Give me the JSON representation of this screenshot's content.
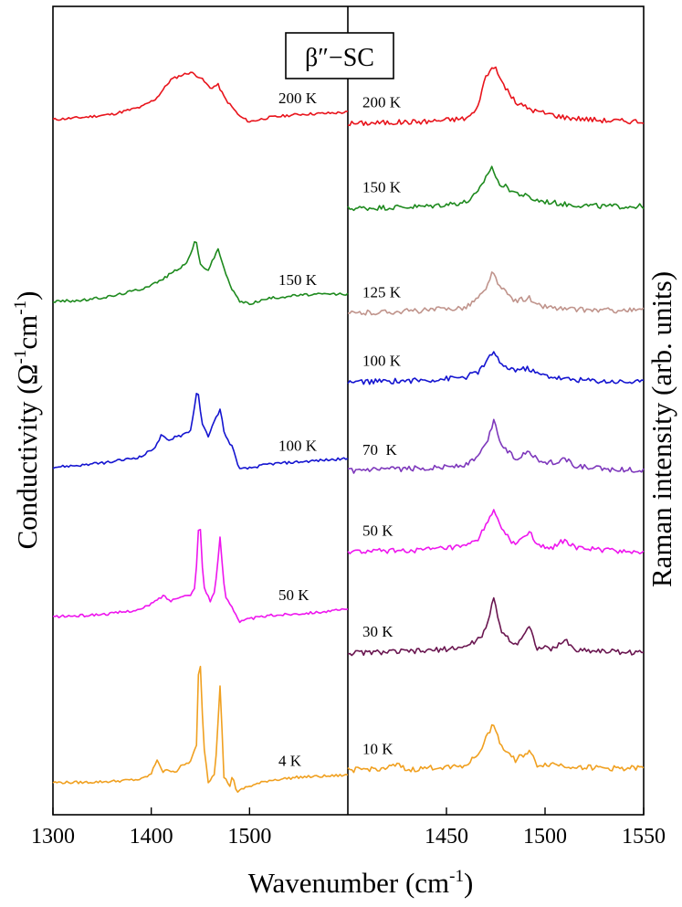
{
  "chart_data": {
    "type": "line",
    "title": "β″−SC",
    "xlabel": "Wavenumber (cm",
    "xlabel_sup": "-1",
    "xlabel_close": ")",
    "left_panel": {
      "ylabel": "Conductivity (Ω",
      "ylabel_sup1": "-1",
      "ylabel_mid": "cm",
      "ylabel_sup2": "-1",
      "ylabel_close": ")",
      "xlim": [
        1300,
        1600
      ],
      "xticks": [
        1300,
        1400,
        1500
      ],
      "series": [
        {
          "name": "200 K",
          "color": "#e8141c",
          "offset": 0.86,
          "points": [
            [
              1300,
              0
            ],
            [
              1330,
              0.02
            ],
            [
              1360,
              0.05
            ],
            [
              1390,
              0.12
            ],
            [
              1405,
              0.2
            ],
            [
              1420,
              0.38
            ],
            [
              1430,
              0.42
            ],
            [
              1440,
              0.45
            ],
            [
              1450,
              0.4
            ],
            [
              1460,
              0.3
            ],
            [
              1468,
              0.33
            ],
            [
              1475,
              0.2
            ],
            [
              1490,
              0.03
            ],
            [
              1500,
              -0.02
            ],
            [
              1520,
              0.02
            ],
            [
              1550,
              0.05
            ],
            [
              1580,
              0.06
            ],
            [
              1600,
              0.07
            ]
          ]
        },
        {
          "name": "150 K",
          "color": "#1e8a1e",
          "offset": 0.635,
          "points": [
            [
              1300,
              0
            ],
            [
              1330,
              0.01
            ],
            [
              1360,
              0.05
            ],
            [
              1390,
              0.12
            ],
            [
              1410,
              0.2
            ],
            [
              1425,
              0.3
            ],
            [
              1435,
              0.35
            ],
            [
              1440,
              0.45
            ],
            [
              1445,
              0.6
            ],
            [
              1450,
              0.35
            ],
            [
              1458,
              0.3
            ],
            [
              1468,
              0.5
            ],
            [
              1473,
              0.35
            ],
            [
              1480,
              0.15
            ],
            [
              1490,
              0.0
            ],
            [
              1500,
              -0.02
            ],
            [
              1520,
              0.03
            ],
            [
              1550,
              0.06
            ],
            [
              1580,
              0.07
            ],
            [
              1600,
              0.07
            ]
          ]
        },
        {
          "name": "100 K",
          "color": "#1414d0",
          "offset": 0.43,
          "points": [
            [
              1300,
              0
            ],
            [
              1330,
              0.02
            ],
            [
              1360,
              0.05
            ],
            [
              1390,
              0.1
            ],
            [
              1405,
              0.2
            ],
            [
              1410,
              0.3
            ],
            [
              1418,
              0.25
            ],
            [
              1425,
              0.3
            ],
            [
              1430,
              0.3
            ],
            [
              1440,
              0.35
            ],
            [
              1447,
              0.75
            ],
            [
              1452,
              0.4
            ],
            [
              1458,
              0.3
            ],
            [
              1465,
              0.45
            ],
            [
              1470,
              0.55
            ],
            [
              1475,
              0.3
            ],
            [
              1482,
              0.2
            ],
            [
              1490,
              -0.02
            ],
            [
              1500,
              -0.01
            ],
            [
              1520,
              0.03
            ],
            [
              1550,
              0.05
            ],
            [
              1580,
              0.07
            ],
            [
              1600,
              0.08
            ]
          ]
        },
        {
          "name": "50 K",
          "color": "#ee16ee",
          "offset": 0.245,
          "points": [
            [
              1300,
              0
            ],
            [
              1330,
              0.01
            ],
            [
              1360,
              0.03
            ],
            [
              1390,
              0.07
            ],
            [
              1405,
              0.15
            ],
            [
              1412,
              0.2
            ],
            [
              1420,
              0.15
            ],
            [
              1430,
              0.2
            ],
            [
              1440,
              0.2
            ],
            [
              1445,
              0.3
            ],
            [
              1449,
              1.0
            ],
            [
              1453,
              0.3
            ],
            [
              1460,
              0.15
            ],
            [
              1465,
              0.25
            ],
            [
              1470,
              0.75
            ],
            [
              1475,
              0.2
            ],
            [
              1482,
              0.1
            ],
            [
              1490,
              -0.05
            ],
            [
              1500,
              -0.02
            ],
            [
              1520,
              0.01
            ],
            [
              1550,
              0.03
            ],
            [
              1580,
              0.05
            ],
            [
              1600,
              0.07
            ]
          ]
        },
        {
          "name": "4 K",
          "color": "#f0a020",
          "offset": 0.04,
          "points": [
            [
              1300,
              0
            ],
            [
              1330,
              0.0
            ],
            [
              1360,
              0.01
            ],
            [
              1390,
              0.03
            ],
            [
              1400,
              0.08
            ],
            [
              1406,
              0.22
            ],
            [
              1412,
              0.1
            ],
            [
              1418,
              0.12
            ],
            [
              1425,
              0.1
            ],
            [
              1430,
              0.15
            ],
            [
              1440,
              0.2
            ],
            [
              1446,
              0.35
            ],
            [
              1449,
              1.35
            ],
            [
              1453,
              0.4
            ],
            [
              1458,
              0.0
            ],
            [
              1465,
              0.1
            ],
            [
              1470,
              0.93
            ],
            [
              1474,
              0.05
            ],
            [
              1480,
              -0.03
            ],
            [
              1483,
              0.07
            ],
            [
              1487,
              -0.1
            ],
            [
              1495,
              -0.05
            ],
            [
              1520,
              0.02
            ],
            [
              1550,
              0.05
            ],
            [
              1580,
              0.06
            ],
            [
              1600,
              0.07
            ]
          ]
        }
      ]
    },
    "right_panel": {
      "ylabel": "Raman intensity (arb. units)",
      "xlim": [
        1400,
        1550
      ],
      "xticks": [
        1450,
        1500,
        1550
      ],
      "series": [
        {
          "name": "200 K",
          "color": "#e8141c",
          "offset": 0.855,
          "points": [
            [
              1400,
              0
            ],
            [
              1440,
              0.02
            ],
            [
              1460,
              0.05
            ],
            [
              1465,
              0.12
            ],
            [
              1470,
              0.45
            ],
            [
              1474,
              0.55
            ],
            [
              1478,
              0.4
            ],
            [
              1485,
              0.2
            ],
            [
              1495,
              0.12
            ],
            [
              1510,
              0.06
            ],
            [
              1530,
              0.03
            ],
            [
              1550,
              0.02
            ]
          ]
        },
        {
          "name": "150 K",
          "color": "#1e8a1e",
          "offset": 0.75,
          "points": [
            [
              1400,
              0
            ],
            [
              1440,
              0.02
            ],
            [
              1460,
              0.06
            ],
            [
              1466,
              0.15
            ],
            [
              1470,
              0.3
            ],
            [
              1473,
              0.4
            ],
            [
              1476,
              0.25
            ],
            [
              1485,
              0.15
            ],
            [
              1490,
              0.12
            ],
            [
              1495,
              0.08
            ],
            [
              1510,
              0.04
            ],
            [
              1530,
              0.02
            ],
            [
              1550,
              0.02
            ]
          ]
        },
        {
          "name": "125 K",
          "color": "#c0948c",
          "offset": 0.62,
          "points": [
            [
              1400,
              0
            ],
            [
              1440,
              0.03
            ],
            [
              1460,
              0.06
            ],
            [
              1466,
              0.15
            ],
            [
              1470,
              0.22
            ],
            [
              1473,
              0.4
            ],
            [
              1477,
              0.25
            ],
            [
              1485,
              0.12
            ],
            [
              1492,
              0.15
            ],
            [
              1495,
              0.08
            ],
            [
              1510,
              0.04
            ],
            [
              1530,
              0.03
            ],
            [
              1550,
              0.03
            ]
          ]
        },
        {
          "name": "100 K",
          "color": "#1414d0",
          "offset": 0.535,
          "points": [
            [
              1400,
              0
            ],
            [
              1440,
              0.02
            ],
            [
              1460,
              0.05
            ],
            [
              1466,
              0.1
            ],
            [
              1470,
              0.18
            ],
            [
              1474,
              0.3
            ],
            [
              1478,
              0.15
            ],
            [
              1485,
              0.12
            ],
            [
              1492,
              0.13
            ],
            [
              1496,
              0.08
            ],
            [
              1510,
              0.03
            ],
            [
              1530,
              0.01
            ],
            [
              1550,
              0.0
            ]
          ]
        },
        {
          "name": "70  K",
          "color": "#7e38bc",
          "offset": 0.425,
          "points": [
            [
              1400,
              0
            ],
            [
              1440,
              0.03
            ],
            [
              1460,
              0.06
            ],
            [
              1466,
              0.14
            ],
            [
              1470,
              0.25
            ],
            [
              1474,
              0.48
            ],
            [
              1478,
              0.25
            ],
            [
              1485,
              0.12
            ],
            [
              1492,
              0.2
            ],
            [
              1496,
              0.1
            ],
            [
              1505,
              0.08
            ],
            [
              1510,
              0.12
            ],
            [
              1515,
              0.05
            ],
            [
              1530,
              0.02
            ],
            [
              1550,
              0.01
            ]
          ]
        },
        {
          "name": "50 K",
          "color": "#ee16ee",
          "offset": 0.325,
          "points": [
            [
              1400,
              0
            ],
            [
              1440,
              0.02
            ],
            [
              1460,
              0.05
            ],
            [
              1466,
              0.12
            ],
            [
              1470,
              0.25
            ],
            [
              1474,
              0.42
            ],
            [
              1478,
              0.2
            ],
            [
              1485,
              0.07
            ],
            [
              1492,
              0.2
            ],
            [
              1496,
              0.05
            ],
            [
              1505,
              0.05
            ],
            [
              1510,
              0.12
            ],
            [
              1515,
              0.04
            ],
            [
              1530,
              0.02
            ],
            [
              1550,
              0.0
            ]
          ]
        },
        {
          "name": "30 K",
          "color": "#6a1650",
          "offset": 0.2,
          "points": [
            [
              1400,
              0
            ],
            [
              1440,
              0.02
            ],
            [
              1460,
              0.06
            ],
            [
              1466,
              0.13
            ],
            [
              1470,
              0.22
            ],
            [
              1474,
              0.52
            ],
            [
              1478,
              0.2
            ],
            [
              1485,
              0.08
            ],
            [
              1492,
              0.25
            ],
            [
              1496,
              0.05
            ],
            [
              1505,
              0.04
            ],
            [
              1510,
              0.13
            ],
            [
              1515,
              0.03
            ],
            [
              1530,
              0.02
            ],
            [
              1550,
              0.0
            ]
          ]
        },
        {
          "name": "10 K",
          "color": "#f0a020",
          "offset": 0.055,
          "points": [
            [
              1400,
              0
            ],
            [
              1420,
              0.02
            ],
            [
              1425,
              0.05
            ],
            [
              1430,
              0.0
            ],
            [
              1440,
              0.02
            ],
            [
              1460,
              0.05
            ],
            [
              1466,
              0.15
            ],
            [
              1470,
              0.3
            ],
            [
              1474,
              0.45
            ],
            [
              1478,
              0.22
            ],
            [
              1485,
              0.1
            ],
            [
              1492,
              0.18
            ],
            [
              1496,
              0.05
            ],
            [
              1505,
              0.06
            ],
            [
              1510,
              0.04
            ],
            [
              1530,
              0.02
            ],
            [
              1550,
              0.02
            ]
          ]
        }
      ]
    }
  }
}
